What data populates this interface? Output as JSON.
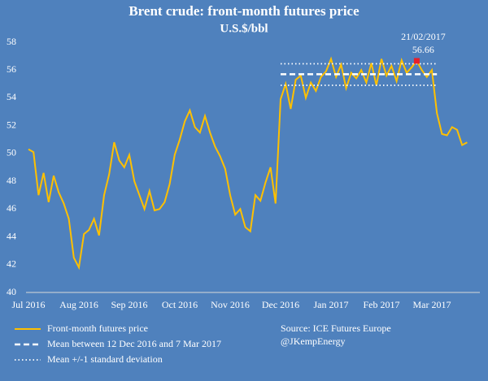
{
  "chart_data": {
    "type": "line",
    "title": "Brent crude: front-month futures price",
    "subtitle": "U.S.$/bbl",
    "categories": [
      "Jul 2016",
      null,
      null,
      null,
      null,
      null,
      null,
      null,
      null,
      null,
      "Aug 2016",
      null,
      null,
      null,
      null,
      null,
      null,
      null,
      null,
      null,
      "Sep 2016",
      null,
      null,
      null,
      null,
      null,
      null,
      null,
      null,
      null,
      "Oct 2016",
      null,
      null,
      null,
      null,
      null,
      null,
      null,
      null,
      null,
      "Nov 2016",
      null,
      null,
      null,
      null,
      null,
      null,
      null,
      null,
      null,
      "Dec 2016",
      null,
      null,
      null,
      null,
      null,
      null,
      null,
      null,
      null,
      "Jan 2017",
      null,
      null,
      null,
      null,
      null,
      null,
      null,
      null,
      null,
      "Feb 2017",
      null,
      null,
      null,
      null,
      null,
      null,
      null,
      null,
      null,
      "Mar 2017",
      null,
      null,
      null,
      null,
      null,
      null,
      null
    ],
    "series": [
      {
        "name": "Front-month futures price",
        "color": "#ffc000",
        "style": "solid",
        "values": [
          50.3,
          50.1,
          47.0,
          48.6,
          46.5,
          48.4,
          47.2,
          46.4,
          45.3,
          42.5,
          41.8,
          44.2,
          44.5,
          45.3,
          44.1,
          47.0,
          48.5,
          50.8,
          49.5,
          49.0,
          49.9,
          48.0,
          47.0,
          46.0,
          47.3,
          45.9,
          46.0,
          46.5,
          47.8,
          49.9,
          51.0,
          52.3,
          53.1,
          51.9,
          51.5,
          52.7,
          51.5,
          50.5,
          49.8,
          48.9,
          47.0,
          45.6,
          46.0,
          44.7,
          44.4,
          47.0,
          46.6,
          47.9,
          49.0,
          46.4,
          53.9,
          55.0,
          53.2,
          55.3,
          55.6,
          54.0,
          55.1,
          54.5,
          55.5,
          55.9,
          56.8,
          55.5,
          56.4,
          54.7,
          55.8,
          55.4,
          56.0,
          55.1,
          56.5,
          54.9,
          56.8,
          55.6,
          56.3,
          55.2,
          56.7,
          55.8,
          56.2,
          56.66,
          56.0,
          55.5,
          56.0,
          52.9,
          51.4,
          51.3,
          51.9,
          51.7,
          50.6,
          50.8
        ]
      },
      {
        "name": "Mean between 12 Dec 2016 and 7 Mar 2017",
        "color": "#ffffff",
        "style": "dash",
        "values": [
          null,
          null,
          null,
          null,
          null,
          null,
          null,
          null,
          null,
          null,
          null,
          null,
          null,
          null,
          null,
          null,
          null,
          null,
          null,
          null,
          null,
          null,
          null,
          null,
          null,
          null,
          null,
          null,
          null,
          null,
          null,
          null,
          null,
          null,
          null,
          null,
          null,
          null,
          null,
          null,
          null,
          null,
          null,
          null,
          null,
          null,
          null,
          null,
          null,
          null,
          55.7,
          55.7,
          55.7,
          55.7,
          55.7,
          55.7,
          55.7,
          55.7,
          55.7,
          55.7,
          55.7,
          55.7,
          55.7,
          55.7,
          55.7,
          55.7,
          55.7,
          55.7,
          55.7,
          55.7,
          55.7,
          55.7,
          55.7,
          55.7,
          55.7,
          55.7,
          55.7,
          55.7,
          55.7,
          55.7,
          55.7,
          55.7,
          null,
          null,
          null,
          null,
          null,
          null
        ]
      },
      {
        "name": "Mean +/-1 standard deviation",
        "color": "#ffffff",
        "style": "dot",
        "values": [
          null,
          null,
          null,
          null,
          null,
          null,
          null,
          null,
          null,
          null,
          null,
          null,
          null,
          null,
          null,
          null,
          null,
          null,
          null,
          null,
          null,
          null,
          null,
          null,
          null,
          null,
          null,
          null,
          null,
          null,
          null,
          null,
          null,
          null,
          null,
          null,
          null,
          null,
          null,
          null,
          null,
          null,
          null,
          null,
          null,
          null,
          null,
          null,
          null,
          null,
          56.45,
          56.45,
          56.45,
          56.45,
          56.45,
          56.45,
          56.45,
          56.45,
          56.45,
          56.45,
          56.45,
          56.45,
          56.45,
          56.45,
          56.45,
          56.45,
          56.45,
          56.45,
          56.45,
          56.45,
          56.45,
          56.45,
          56.45,
          56.45,
          56.45,
          56.45,
          56.45,
          56.45,
          56.45,
          56.45,
          56.45,
          56.45,
          null,
          null,
          null,
          null,
          null,
          null
        ]
      },
      {
        "color": "#ffffff",
        "style": "dot",
        "values": [
          null,
          null,
          null,
          null,
          null,
          null,
          null,
          null,
          null,
          null,
          null,
          null,
          null,
          null,
          null,
          null,
          null,
          null,
          null,
          null,
          null,
          null,
          null,
          null,
          null,
          null,
          null,
          null,
          null,
          null,
          null,
          null,
          null,
          null,
          null,
          null,
          null,
          null,
          null,
          null,
          null,
          null,
          null,
          null,
          null,
          null,
          null,
          null,
          null,
          null,
          54.9,
          54.9,
          54.9,
          54.9,
          54.9,
          54.9,
          54.9,
          54.9,
          54.9,
          54.9,
          54.9,
          54.9,
          54.9,
          54.9,
          54.9,
          54.9,
          54.9,
          54.9,
          54.9,
          54.9,
          54.9,
          54.9,
          54.9,
          54.9,
          54.9,
          54.9,
          54.9,
          54.9,
          54.9,
          54.9,
          54.9,
          54.9,
          null,
          null,
          null,
          null,
          null,
          null
        ]
      }
    ],
    "annotation": {
      "date": "21/02/2017",
      "value": 56.66,
      "color": "#e8202a"
    },
    "ylim": [
      40,
      58
    ],
    "yticks": [
      40,
      42,
      44,
      46,
      48,
      50,
      52,
      54,
      56,
      58
    ],
    "source": [
      "Source: ICE Futures Europe",
      "@JKempEnergy"
    ]
  }
}
